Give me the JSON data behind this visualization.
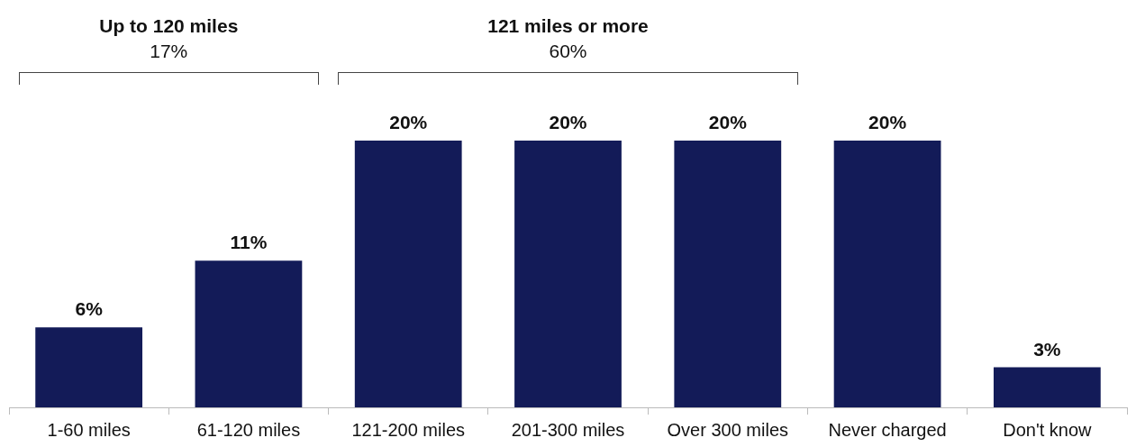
{
  "chart_data": {
    "type": "bar",
    "categories": [
      "1-60 miles",
      "61-120 miles",
      "121-200 miles",
      "201-300 miles",
      "Over 300 miles",
      "Never charged",
      "Don't know"
    ],
    "values": [
      6,
      11,
      20,
      20,
      20,
      20,
      3
    ],
    "value_labels": [
      "6%",
      "11%",
      "20%",
      "20%",
      "20%",
      "20%",
      "3%"
    ],
    "color": "#131b58",
    "annotations": [
      "Up to 120 miles",
      "17%",
      "121 miles or more",
      "60%"
    ]
  }
}
